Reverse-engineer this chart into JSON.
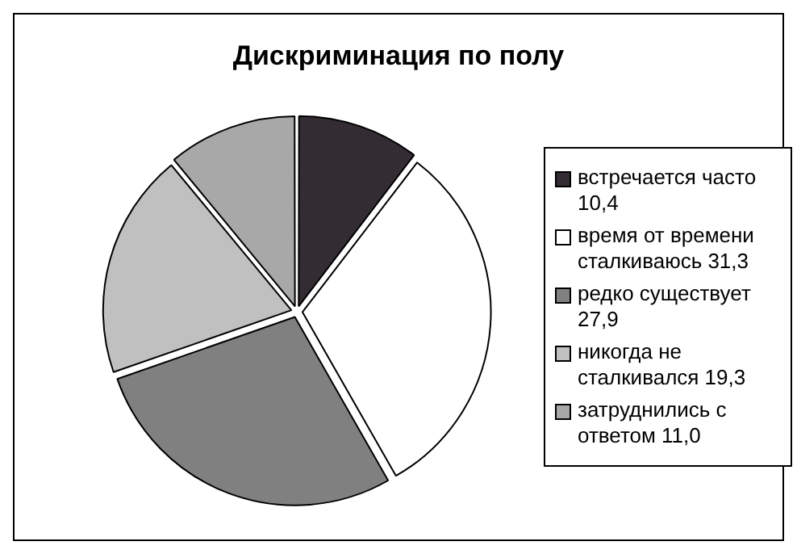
{
  "chart_data": {
    "type": "pie",
    "title": "Дискриминация по полу",
    "categories": [
      "встречается часто 10,4",
      "время от времени сталкиваюсь 31,3",
      "редко существует 27,9",
      "никогда не сталкивался 19,3",
      "затруднились с ответом 11,0"
    ],
    "values": [
      10.4,
      31.3,
      27.9,
      19.3,
      11.0
    ],
    "colors": [
      "#332c33",
      "#ffffff",
      "#808080",
      "#c0c0c0",
      "#a8a8a8"
    ],
    "legend": "right"
  }
}
